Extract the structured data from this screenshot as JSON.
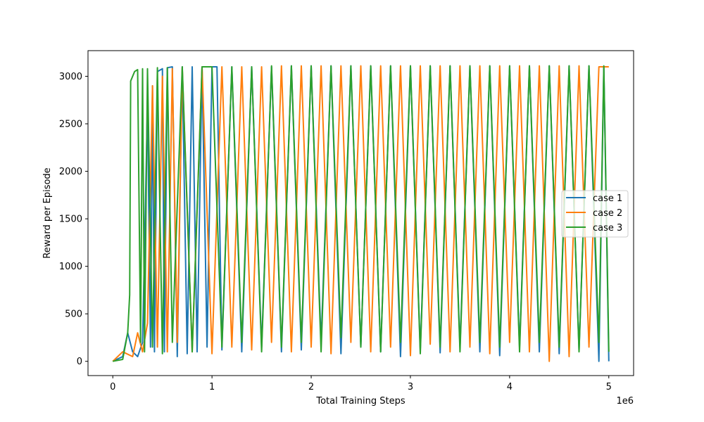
{
  "chart_data": {
    "type": "line",
    "title": "",
    "xlabel": "Total Training Steps",
    "ylabel": "Reward per Episode",
    "x_offset_label": "1e6",
    "xlim": [
      -250000,
      5250000
    ],
    "ylim": [
      -150,
      3270
    ],
    "x_ticks": [
      {
        "value": 0,
        "label": "0"
      },
      {
        "value": 1000000,
        "label": "1"
      },
      {
        "value": 2000000,
        "label": "2"
      },
      {
        "value": 3000000,
        "label": "3"
      },
      {
        "value": 4000000,
        "label": "4"
      },
      {
        "value": 5000000,
        "label": "5"
      }
    ],
    "y_ticks": [
      {
        "value": 0,
        "label": "0"
      },
      {
        "value": 500,
        "label": "500"
      },
      {
        "value": 1000,
        "label": "1000"
      },
      {
        "value": 1500,
        "label": "1500"
      },
      {
        "value": 2000,
        "label": "2000"
      },
      {
        "value": 2500,
        "label": "2500"
      },
      {
        "value": 3000,
        "label": "3000"
      }
    ],
    "grid": false,
    "legend_position": "center-right",
    "series": [
      {
        "name": "case 1",
        "color": "#1f77b4",
        "x": [
          0,
          100000,
          150000,
          200000,
          250000,
          300000,
          350000,
          380000,
          400000,
          420000,
          450000,
          500000,
          520000,
          550000,
          600000,
          650000,
          700000,
          750000,
          800000,
          850000,
          900000,
          950000,
          1000000,
          1050000,
          1100000,
          1200000,
          1300000,
          1400000,
          1500000,
          1600000,
          1700000,
          1800000,
          1900000,
          2000000,
          2100000,
          2200000,
          2300000,
          2400000,
          2500000,
          2600000,
          2700000,
          2800000,
          2900000,
          3000000,
          3100000,
          3200000,
          3300000,
          3400000,
          3500000,
          3600000,
          3700000,
          3800000,
          3900000,
          4000000,
          4100000,
          4200000,
          4300000,
          4400000,
          4500000,
          4600000,
          4700000,
          4800000,
          4900000,
          4950000,
          5000000
        ],
        "y": [
          0,
          50,
          300,
          100,
          50,
          200,
          2700,
          150,
          2900,
          100,
          3050,
          3080,
          100,
          3090,
          3100,
          50,
          3100,
          80,
          3100,
          100,
          3100,
          150,
          3100,
          3100,
          120,
          3100,
          100,
          3100,
          150,
          3100,
          100,
          3110,
          120,
          3110,
          200,
          3110,
          80,
          3110,
          150,
          3110,
          100,
          3110,
          50,
          3110,
          120,
          3110,
          90,
          3110,
          150,
          3110,
          100,
          3110,
          60,
          3110,
          150,
          3110,
          100,
          3110,
          80,
          3110,
          120,
          3110,
          0,
          3100,
          0
        ]
      },
      {
        "name": "case 2",
        "color": "#ff7f0e",
        "x": [
          0,
          100000,
          200000,
          250000,
          300000,
          350000,
          400000,
          450000,
          500000,
          550000,
          600000,
          650000,
          700000,
          800000,
          900000,
          1000000,
          1100000,
          1200000,
          1300000,
          1400000,
          1500000,
          1600000,
          1700000,
          1800000,
          1900000,
          2000000,
          2100000,
          2200000,
          2300000,
          2400000,
          2500000,
          2600000,
          2700000,
          2800000,
          2900000,
          3000000,
          3100000,
          3200000,
          3300000,
          3400000,
          3500000,
          3600000,
          3700000,
          3800000,
          3900000,
          4000000,
          4100000,
          4200000,
          4300000,
          4400000,
          4500000,
          4600000,
          4700000,
          4800000,
          4900000,
          5000000
        ],
        "y": [
          0,
          100,
          50,
          300,
          100,
          400,
          2900,
          150,
          3000,
          100,
          3080,
          200,
          3090,
          100,
          3100,
          80,
          3100,
          150,
          3100,
          120,
          3100,
          200,
          3110,
          100,
          3110,
          150,
          3110,
          80,
          3110,
          200,
          3110,
          100,
          3110,
          150,
          3110,
          60,
          3110,
          180,
          3110,
          100,
          3110,
          150,
          3110,
          80,
          3110,
          200,
          3110,
          100,
          3110,
          0,
          3110,
          50,
          3110,
          150,
          3100,
          3100
        ]
      },
      {
        "name": "case 3",
        "color": "#2ca02c",
        "x": [
          0,
          100000,
          150000,
          170000,
          180000,
          200000,
          220000,
          250000,
          280000,
          300000,
          320000,
          350000,
          400000,
          450000,
          500000,
          550000,
          600000,
          700000,
          800000,
          900000,
          1000000,
          1100000,
          1200000,
          1300000,
          1400000,
          1500000,
          1600000,
          1700000,
          1800000,
          1900000,
          2000000,
          2100000,
          2200000,
          2300000,
          2400000,
          2500000,
          2600000,
          2700000,
          2800000,
          2900000,
          3000000,
          3100000,
          3200000,
          3300000,
          3400000,
          3500000,
          3600000,
          3700000,
          3800000,
          3900000,
          4000000,
          4100000,
          4200000,
          4300000,
          4400000,
          4500000,
          4600000,
          4700000,
          4800000,
          4900000,
          4950000,
          5000000
        ],
        "y": [
          0,
          20,
          300,
          700,
          2950,
          3000,
          3050,
          3070,
          200,
          3080,
          100,
          3080,
          150,
          3090,
          80,
          3090,
          200,
          3100,
          100,
          3100,
          3100,
          150,
          3100,
          200,
          3100,
          100,
          3110,
          150,
          3110,
          200,
          3110,
          100,
          3110,
          250,
          3110,
          150,
          3110,
          100,
          3110,
          200,
          3110,
          80,
          3110,
          150,
          3110,
          100,
          3110,
          200,
          3110,
          150,
          3110,
          100,
          3110,
          200,
          3110,
          150,
          3110,
          100,
          3110,
          200,
          3110,
          100
        ]
      }
    ]
  }
}
